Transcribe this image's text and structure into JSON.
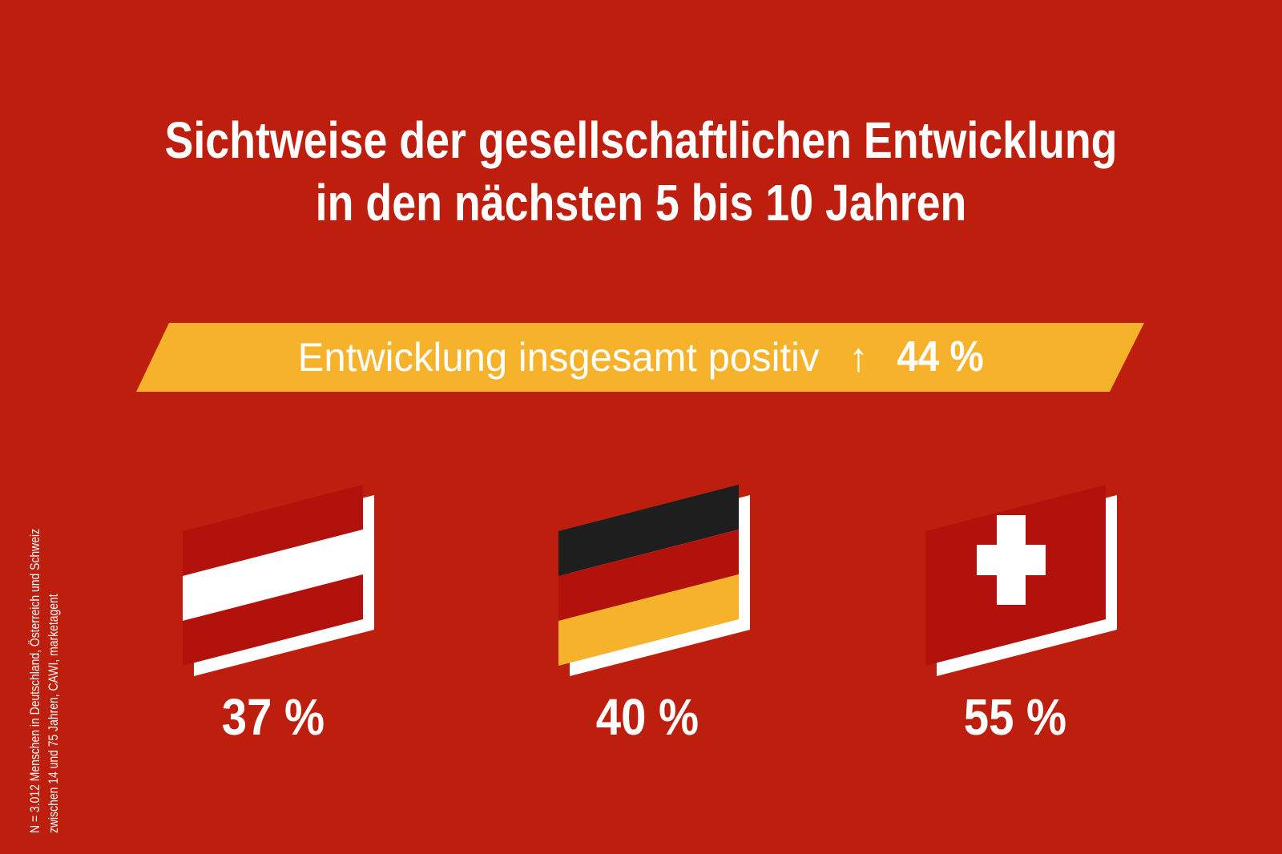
{
  "title": {
    "line1": "Sichtweise der gesellschaftlichen Entwicklung",
    "line2": "in den nächsten 5 bis 10 Jahren"
  },
  "banner": {
    "label": "Entwicklung insgesamt positiv",
    "arrow_icon": "arrow-up-icon",
    "arrow_glyph": "🡑",
    "value": "44 %"
  },
  "colors": {
    "background": "#BE1E0D",
    "flag_red": "#B3110C",
    "banner_yellow": "#F5B22A",
    "black": "#1E1E1E",
    "white": "#FFFFFF"
  },
  "chart_data": {
    "type": "bar",
    "title": "Sichtweise der gesellschaftlichen Entwicklung in den nächsten 5 bis 10 Jahren",
    "total": {
      "label": "Entwicklung insgesamt positiv",
      "value": 44,
      "unit": "%"
    },
    "categories": [
      "austria-flag-icon",
      "germany-flag-icon",
      "switzerland-flag-icon"
    ],
    "values": [
      37,
      40,
      55
    ],
    "value_labels": [
      "37 %",
      "40 %",
      "55 %"
    ],
    "unit": "%"
  },
  "footnote": {
    "line1": "N = 3.012 Menschen in Deutschland, Österreich und Schweiz",
    "line2": "zwischen 14 und 75 Jahren, CAWI, marketagent"
  }
}
